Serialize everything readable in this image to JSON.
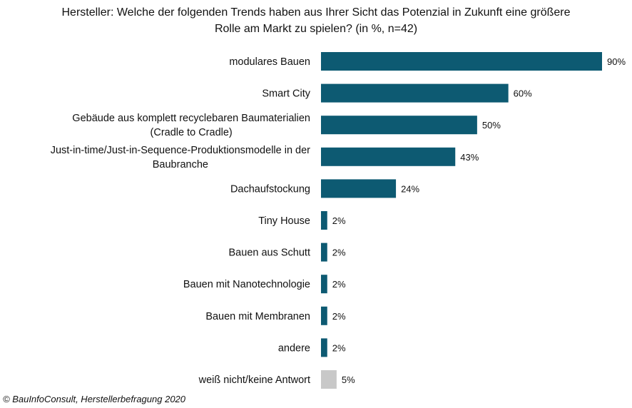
{
  "title": {
    "line1": "Hersteller: Welche der folgenden Trends haben aus Ihrer Sicht das Potenzial in Zukunft eine größere",
    "line2": "Rolle am Markt zu spielen? (in %, n=42)"
  },
  "source": "© BauInfoConsult, Herstellerbefragung 2020",
  "colors": {
    "primary": "#0d5a72",
    "neutral": "#c8c8c8"
  },
  "chart_data": {
    "type": "bar",
    "orientation": "horizontal",
    "categories": [
      [
        "modulares Bauen"
      ],
      [
        "Smart City"
      ],
      [
        "Gebäude aus komplett recyclebaren Baumaterialien",
        "(Cradle to Cradle)"
      ],
      [
        "Just-in-time/Just-in-Sequence-Produktionsmodelle in der",
        "Baubranche"
      ],
      [
        "Dachaufstockung"
      ],
      [
        "Tiny House"
      ],
      [
        "Bauen aus Schutt"
      ],
      [
        "Bauen mit Nanotechnologie"
      ],
      [
        "Bauen mit Membranen"
      ],
      [
        "andere"
      ],
      [
        "weiß nicht/keine Antwort"
      ]
    ],
    "values": [
      90,
      60,
      50,
      43,
      24,
      2,
      2,
      2,
      2,
      2,
      5
    ],
    "data_labels": [
      "90%",
      "60%",
      "50%",
      "43%",
      "24%",
      "2%",
      "2%",
      "2%",
      "2%",
      "2%",
      "5%"
    ],
    "bar_colors": [
      "primary",
      "primary",
      "primary",
      "primary",
      "primary",
      "primary",
      "primary",
      "primary",
      "primary",
      "primary",
      "neutral"
    ],
    "xlim": [
      0,
      90
    ],
    "grid": false,
    "legend": "none"
  }
}
